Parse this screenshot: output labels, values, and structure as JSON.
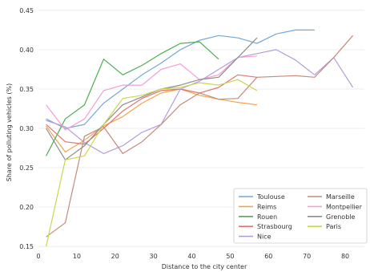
{
  "chart_data": {
    "type": "line",
    "title": "",
    "xlabel": "Distance to the city center",
    "ylabel": "Share of polluting vehicles (%)",
    "xlim": [
      0,
      85
    ],
    "ylim": [
      0.145,
      0.455
    ],
    "xticks": [
      0,
      10,
      20,
      30,
      40,
      50,
      60,
      70,
      80
    ],
    "yticks": [
      0.15,
      0.2,
      0.25,
      0.3,
      0.35,
      0.4,
      0.45
    ],
    "ytick_labels": [
      "0.15",
      "0.20",
      "0.25",
      "0.30",
      "0.35",
      "0.40",
      "0.45"
    ],
    "grid": "horizontal",
    "legend_position": "bottom-right",
    "legend_columns": 2,
    "series": [
      {
        "name": "Toulouse",
        "color": "#6fa8dc",
        "x": [
          2,
          7,
          12,
          17,
          22,
          27,
          32,
          37,
          42,
          47,
          52,
          57,
          62,
          67,
          72
        ],
        "y": [
          0.312,
          0.3,
          0.305,
          0.332,
          0.35,
          0.368,
          0.383,
          0.4,
          0.412,
          0.418,
          0.415,
          0.408,
          0.42,
          0.425,
          0.425
        ]
      },
      {
        "name": "Reims",
        "color": "#f6a44c",
        "x": [
          2,
          7,
          12,
          17,
          22,
          27,
          32,
          37,
          42,
          47,
          52,
          57
        ],
        "y": [
          0.303,
          0.27,
          0.285,
          0.303,
          0.315,
          0.332,
          0.345,
          0.35,
          0.342,
          0.337,
          0.333,
          0.33
        ]
      },
      {
        "name": "Rouen",
        "color": "#4caf50",
        "x": [
          2,
          7,
          12,
          17,
          22,
          27,
          32,
          37,
          42,
          47
        ],
        "y": [
          0.265,
          0.312,
          0.33,
          0.388,
          0.368,
          0.38,
          0.395,
          0.408,
          0.41,
          0.388
        ]
      },
      {
        "name": "Strasbourg",
        "color": "#e57373",
        "x": [
          2,
          7,
          12,
          17,
          22,
          27,
          32,
          37,
          42,
          47,
          52,
          57
        ],
        "y": [
          0.305,
          0.283,
          0.28,
          0.3,
          0.322,
          0.338,
          0.348,
          0.35,
          0.345,
          0.352,
          0.368,
          0.365
        ]
      },
      {
        "name": "Nice",
        "color": "#b39ddb",
        "x": [
          2,
          7,
          12,
          17,
          22,
          27,
          32,
          37,
          42,
          47,
          52,
          57,
          62,
          67,
          72,
          77,
          82
        ],
        "y": [
          0.31,
          0.302,
          0.282,
          0.268,
          0.278,
          0.295,
          0.305,
          0.35,
          0.36,
          0.375,
          0.39,
          0.395,
          0.4,
          0.387,
          0.368,
          0.39,
          0.352
        ]
      },
      {
        "name": "Marseille",
        "color": "#c48b7c",
        "x": [
          2,
          7,
          12,
          17,
          22,
          27,
          32,
          37,
          42,
          47,
          52,
          57,
          62,
          67,
          72,
          77,
          82
        ],
        "y": [
          0.162,
          0.18,
          0.29,
          0.302,
          0.268,
          0.283,
          0.305,
          0.33,
          0.345,
          0.337,
          0.338,
          0.365,
          0.366,
          0.367,
          0.365,
          0.39,
          0.418
        ]
      },
      {
        "name": "Montpellier",
        "color": "#f29ed8",
        "x": [
          2,
          7,
          12,
          17,
          22,
          27,
          32,
          37,
          42,
          47,
          52,
          57
        ],
        "y": [
          0.33,
          0.298,
          0.312,
          0.348,
          0.355,
          0.355,
          0.375,
          0.382,
          0.362,
          0.368,
          0.39,
          0.392
        ]
      },
      {
        "name": "Grenoble",
        "color": "#8d8d8d",
        "x": [
          2,
          7,
          12,
          17,
          22,
          27,
          32,
          37,
          42,
          47,
          52,
          57
        ],
        "y": [
          0.3,
          0.26,
          0.278,
          0.305,
          0.33,
          0.34,
          0.35,
          0.355,
          0.362,
          0.365,
          0.39,
          0.415
        ]
      },
      {
        "name": "Paris",
        "color": "#c9d64f",
        "x": [
          2,
          7,
          12,
          17,
          22,
          27,
          32,
          37,
          42,
          47,
          52,
          57
        ],
        "y": [
          0.15,
          0.26,
          0.265,
          0.305,
          0.338,
          0.342,
          0.35,
          0.352,
          0.358,
          0.355,
          0.362,
          0.348
        ]
      }
    ]
  }
}
